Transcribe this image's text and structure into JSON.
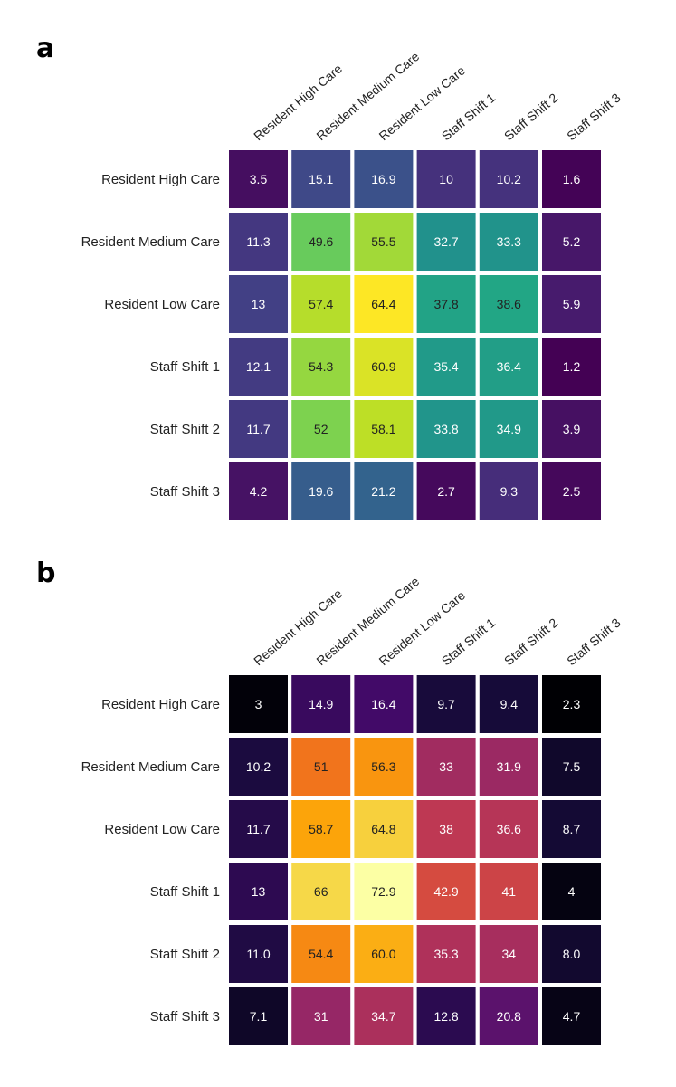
{
  "chart_data": [
    {
      "type": "heatmap",
      "panel_label": "a",
      "colormap": "viridis",
      "rows": [
        "Resident High Care",
        "Resident Medium Care",
        "Resident Low Care",
        "Staff Shift 1",
        "Staff Shift 2",
        "Staff Shift 3"
      ],
      "columns": [
        "Resident High Care",
        "Resident Medium Care",
        "Resident Low Care",
        "Staff Shift 1",
        "Staff Shift 2",
        "Staff Shift 3"
      ],
      "values": [
        [
          "3.5",
          "15.1",
          "16.9",
          "10",
          "10.2",
          "1.6"
        ],
        [
          "11.3",
          "49.6",
          "55.5",
          "32.7",
          "33.3",
          "5.2"
        ],
        [
          "13",
          "57.4",
          "64.4",
          "37.8",
          "38.6",
          "5.9"
        ],
        [
          "12.1",
          "54.3",
          "60.9",
          "35.4",
          "36.4",
          "1.2"
        ],
        [
          "11.7",
          "52",
          "58.1",
          "33.8",
          "34.9",
          "3.9"
        ],
        [
          "4.2",
          "19.6",
          "21.2",
          "2.7",
          "9.3",
          "2.5"
        ]
      ],
      "vmin": 1.2,
      "vmax": 64.4
    },
    {
      "type": "heatmap",
      "panel_label": "b",
      "colormap": "inferno",
      "rows": [
        "Resident High Care",
        "Resident Medium Care",
        "Resident Low Care",
        "Staff Shift 1",
        "Staff Shift 2",
        "Staff Shift 3"
      ],
      "columns": [
        "Resident High Care",
        "Resident Medium Care",
        "Resident Low Care",
        "Staff Shift 1",
        "Staff Shift 2",
        "Staff Shift 3"
      ],
      "values": [
        [
          "3",
          "14.9",
          "16.4",
          "9.7",
          "9.4",
          "2.3"
        ],
        [
          "10.2",
          "51",
          "56.3",
          "33",
          "31.9",
          "7.5"
        ],
        [
          "11.7",
          "58.7",
          "64.8",
          "38",
          "36.6",
          "8.7"
        ],
        [
          "13",
          "66",
          "72.9",
          "42.9",
          "41",
          "4"
        ],
        [
          "11.0",
          "54.4",
          "60.0",
          "35.3",
          "34",
          "8.0"
        ],
        [
          "7.1",
          "31",
          "34.7",
          "12.8",
          "20.8",
          "4.7"
        ]
      ],
      "vmin": 2.3,
      "vmax": 72.9
    }
  ]
}
